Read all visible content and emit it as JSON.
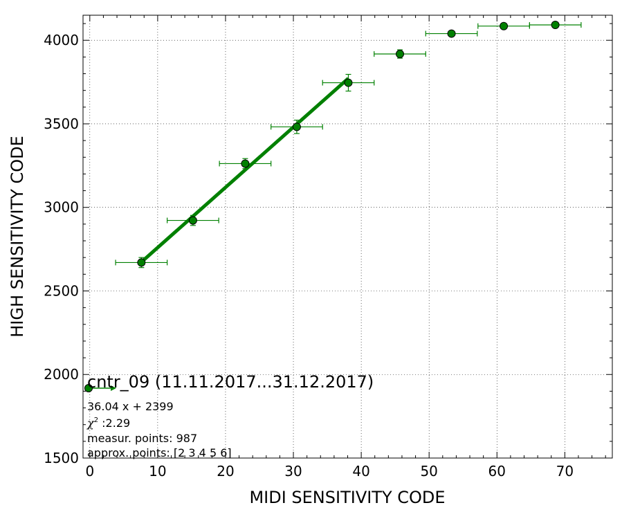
{
  "chart_data": {
    "type": "scatter",
    "xlabel": "MIDI SENSITIVITY CODE",
    "ylabel": "HIGH SENSITIVITY CODE",
    "xlim": [
      -1,
      77
    ],
    "ylim": [
      1500,
      4150
    ],
    "xticks": [
      0,
      10,
      20,
      30,
      40,
      50,
      60,
      70
    ],
    "yticks": [
      1500,
      2000,
      2500,
      3000,
      3500,
      4000
    ],
    "grid": true,
    "grid_style": "dotted",
    "color": "#008000",
    "points": [
      {
        "x": 7.6,
        "y": 2670,
        "xerr": 3.8,
        "yerr": 30
      },
      {
        "x": 15.2,
        "y": 2922,
        "xerr": 3.8,
        "yerr": 30
      },
      {
        "x": 22.9,
        "y": 3262,
        "xerr": 3.8,
        "yerr": 30
      },
      {
        "x": 30.5,
        "y": 3482,
        "xerr": 3.8,
        "yerr": 40
      },
      {
        "x": 38.1,
        "y": 3746,
        "xerr": 3.8,
        "yerr": 50
      },
      {
        "x": 45.7,
        "y": 3918,
        "xerr": 3.8,
        "yerr": 25
      },
      {
        "x": 53.3,
        "y": 4040,
        "xerr": 3.8,
        "yerr": 10
      },
      {
        "x": 61.0,
        "y": 4085,
        "xerr": 3.8,
        "yerr": 10
      },
      {
        "x": 68.6,
        "y": 4092,
        "xerr": 3.8,
        "yerr": 10
      }
    ],
    "fit": {
      "slope": 36.04,
      "intercept": 2399,
      "x_range": [
        7.6,
        38.1
      ]
    },
    "legend": {
      "placement": "bottom-left",
      "title": "cntr_09 (11.11.2017...31.12.2017)",
      "equation": "36.04 x + 2399",
      "chi2_symbol": "χ",
      "chi2_exponent": "2",
      "chi2_value": " :2.29",
      "measur_points": "measur. points: 987",
      "approx_points": "approx. points: [2 3 4 5 6]"
    }
  }
}
